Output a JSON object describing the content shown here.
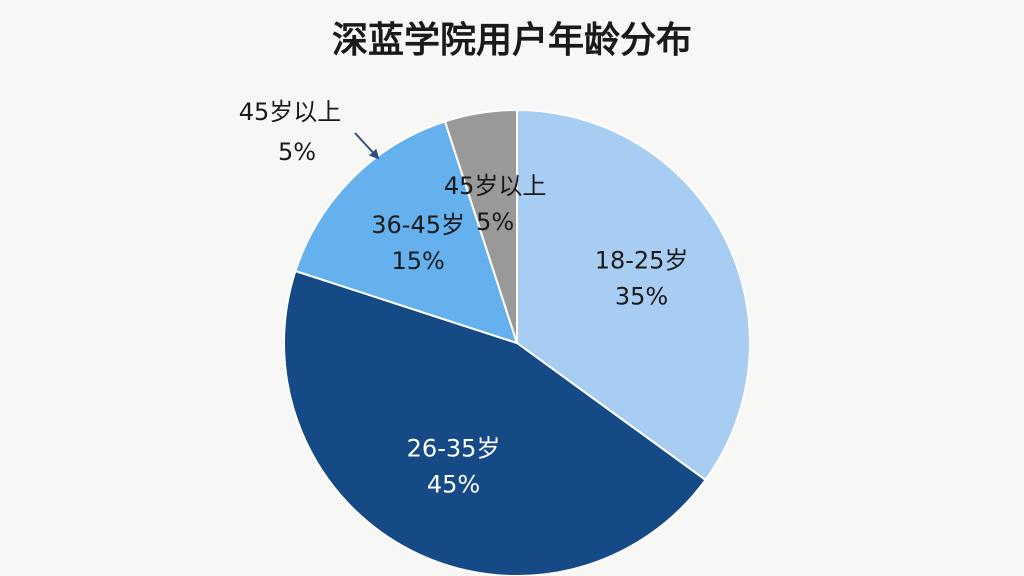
{
  "chart_data": {
    "type": "pie",
    "title": "深蓝学院用户年龄分布",
    "categories": [
      "18-25岁",
      "26-35岁",
      "36-45岁",
      "45岁以上"
    ],
    "values": [
      35,
      45,
      15,
      5
    ],
    "value_labels": [
      "35%",
      "45%",
      "15%",
      "5%"
    ],
    "colors": [
      "#a8cdf2",
      "#164a86",
      "#64b1ee",
      "#999999"
    ],
    "start_angle": 0,
    "direction": "clockwise",
    "callout": 3
  }
}
